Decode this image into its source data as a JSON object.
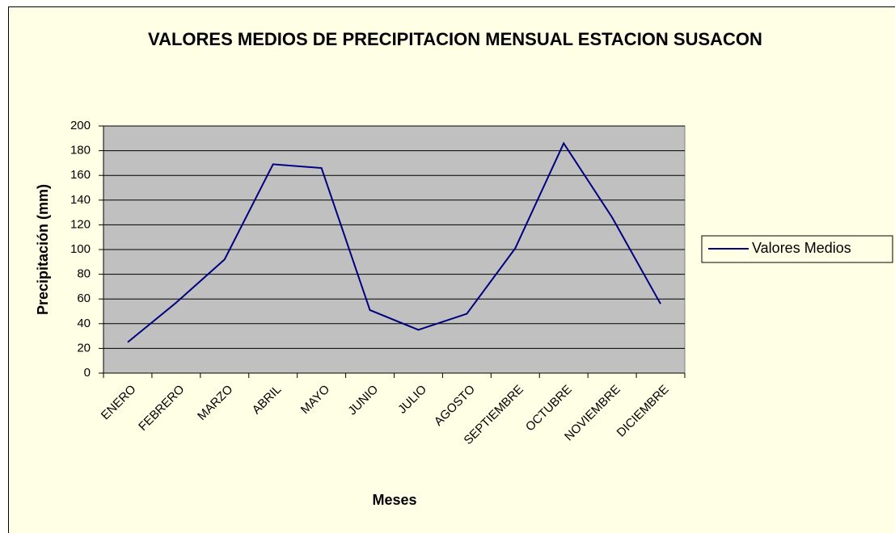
{
  "chart_data": {
    "type": "line",
    "title": "VALORES MEDIOS DE PRECIPITACION MENSUAL ESTACION SUSACON",
    "x_label": "Meses",
    "y_label": "Precipitación (mm)",
    "categories": [
      "ENERO",
      "FEBRERO",
      "MARZO",
      "ABRIL",
      "MAYO",
      "JUNIO",
      "JULIO",
      "AGOSTO",
      "SEPTIEMBRE",
      "OCTUBRE",
      "NOVIEMBRE",
      "DICIEMBRE"
    ],
    "series": [
      {
        "name": "Valores Medios",
        "color": "#000080",
        "values": [
          25,
          57,
          92,
          169,
          166,
          51,
          35,
          48,
          101,
          186,
          126,
          56
        ]
      }
    ],
    "ylim": [
      0,
      200
    ],
    "yticks": [
      0,
      20,
      40,
      60,
      80,
      100,
      120,
      140,
      160,
      180,
      200
    ],
    "grid": true,
    "legend": "right"
  }
}
